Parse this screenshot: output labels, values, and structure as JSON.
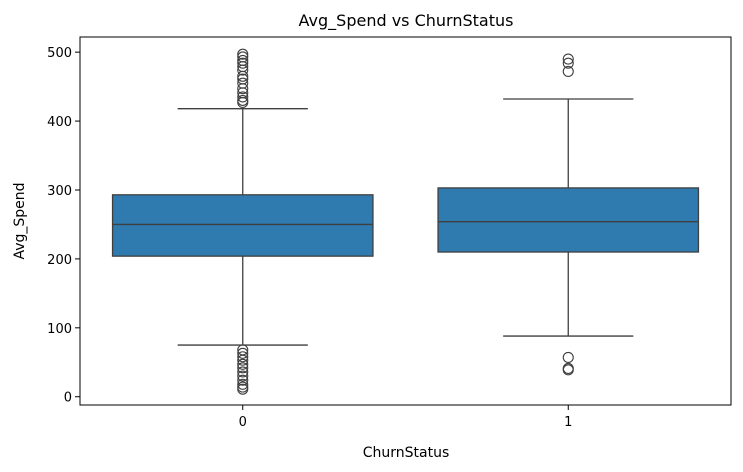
{
  "chart_data": {
    "type": "box",
    "title": "Avg_Spend vs ChurnStatus",
    "xlabel": "ChurnStatus",
    "ylabel": "Avg_Spend",
    "categories": [
      "0",
      "1"
    ],
    "ylim": [
      -12,
      522
    ],
    "yticks": [
      0,
      100,
      200,
      300,
      400,
      500
    ],
    "grid": false,
    "color": "#2f7bb0",
    "boxes": [
      {
        "category": "0",
        "whisker_low": 75,
        "q1": 204,
        "median": 250,
        "q3": 293,
        "whisker_high": 418,
        "outliers": [
          497,
          493,
          488,
          484,
          479,
          474,
          465,
          461,
          455,
          447,
          441,
          435,
          430,
          427,
          68,
          63,
          58,
          53,
          47,
          42,
          36,
          30,
          24,
          18,
          14,
          11
        ]
      },
      {
        "category": "1",
        "whisker_low": 88,
        "q1": 210,
        "median": 254,
        "q3": 303,
        "whisker_high": 432,
        "outliers": [
          490,
          484,
          472,
          57,
          41,
          39
        ]
      }
    ]
  }
}
